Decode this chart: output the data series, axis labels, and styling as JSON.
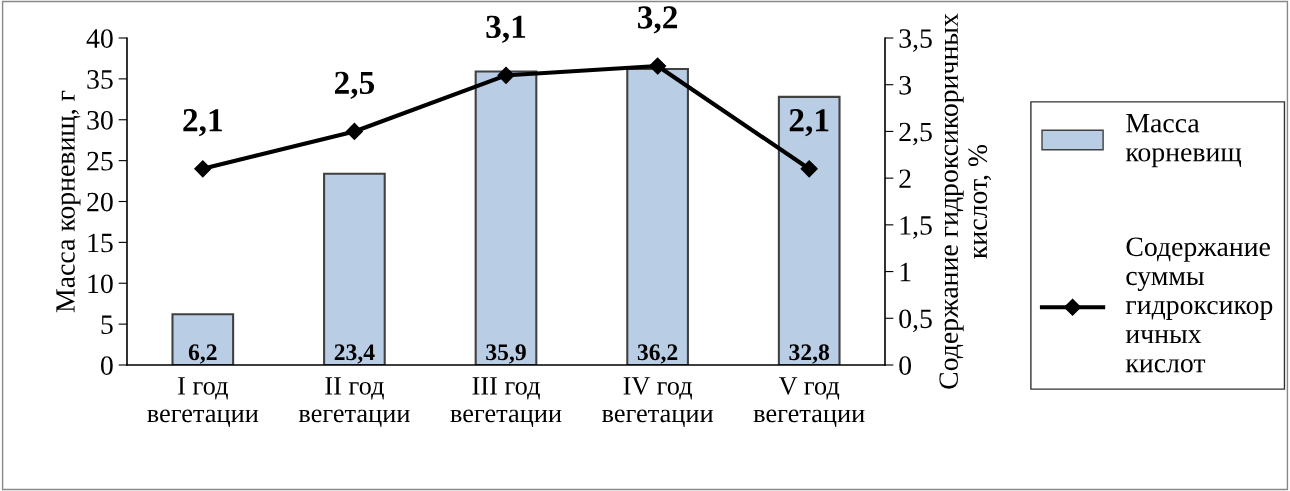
{
  "chart_data": {
    "type": "bar",
    "categories": [
      "I год\nвегетации",
      "II год\nвегетации",
      "III год\nвегетации",
      "IV год\nвегетации",
      "V год\nвегетации"
    ],
    "ylabel": "Масса корневищ, г",
    "y2label": "Содержание гидроксикоричных кислот, %",
    "ylim": [
      0,
      40
    ],
    "yticks": [
      0,
      5,
      10,
      15,
      20,
      25,
      30,
      35,
      40
    ],
    "y2lim": [
      0,
      3.5
    ],
    "y2ticks": [
      {
        "value": 0,
        "label": "0"
      },
      {
        "value": 0.5,
        "label": "0,5"
      },
      {
        "value": 1,
        "label": "1"
      },
      {
        "value": 1.5,
        "label": "1,5"
      },
      {
        "value": 2,
        "label": "2"
      },
      {
        "value": 2.5,
        "label": "2,5"
      },
      {
        "value": 3,
        "label": "3"
      },
      {
        "value": 3.5,
        "label": "3,5"
      }
    ],
    "legend": "right",
    "grid": false,
    "series": [
      {
        "name": "Масса корневищ",
        "color": "#b9cde5",
        "values": [
          6.2,
          23.4,
          35.9,
          36.2,
          32.8
        ],
        "value_labels": [
          "6,2",
          "23,4",
          "35,9",
          "36,2",
          "32,8"
        ]
      },
      {
        "name": "Содержание суммы гидроксикоричных кислот",
        "type": "line",
        "axis": "y2",
        "color": "#000000",
        "marker": "diamond",
        "line_style": "solid",
        "values": [
          2.1,
          2.5,
          3.1,
          3.2,
          2.1
        ],
        "value_labels": [
          "2,1",
          "2,5",
          "3,1",
          "3,2",
          "2,1"
        ]
      }
    ]
  }
}
